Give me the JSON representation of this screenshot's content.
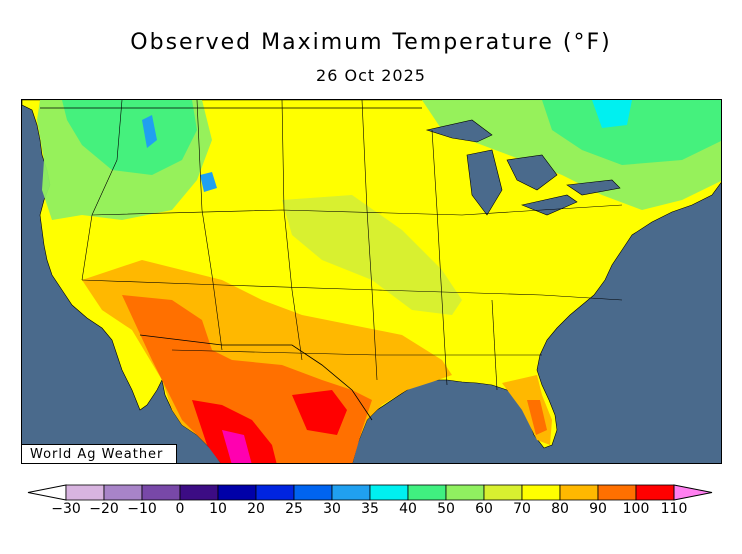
{
  "title": "Observed Maximum Temperature (°F)",
  "subtitle": "26 Oct 2025",
  "credit": "World Ag Weather",
  "colors": {
    "ocean": "#4a6a8c",
    "land_default": "#ffff00"
  },
  "legend": {
    "ticks": [
      "−30",
      "−20",
      "−10",
      "0",
      "10",
      "20",
      "25",
      "30",
      "35",
      "40",
      "50",
      "60",
      "70",
      "80",
      "90",
      "100",
      "110"
    ],
    "colors": [
      "#d8b4e0",
      "#a884c8",
      "#7848a8",
      "#3c0c84",
      "#0000a8",
      "#0024e0",
      "#0064f0",
      "#20a0f0",
      "#00f0f0",
      "#40f080",
      "#90f060",
      "#d8f030",
      "#ffff00",
      "#ffb800",
      "#ff7000",
      "#ff0000",
      "#ff00b0"
    ],
    "under_color": "#ffffff",
    "over_color": "#ff80f0"
  }
}
